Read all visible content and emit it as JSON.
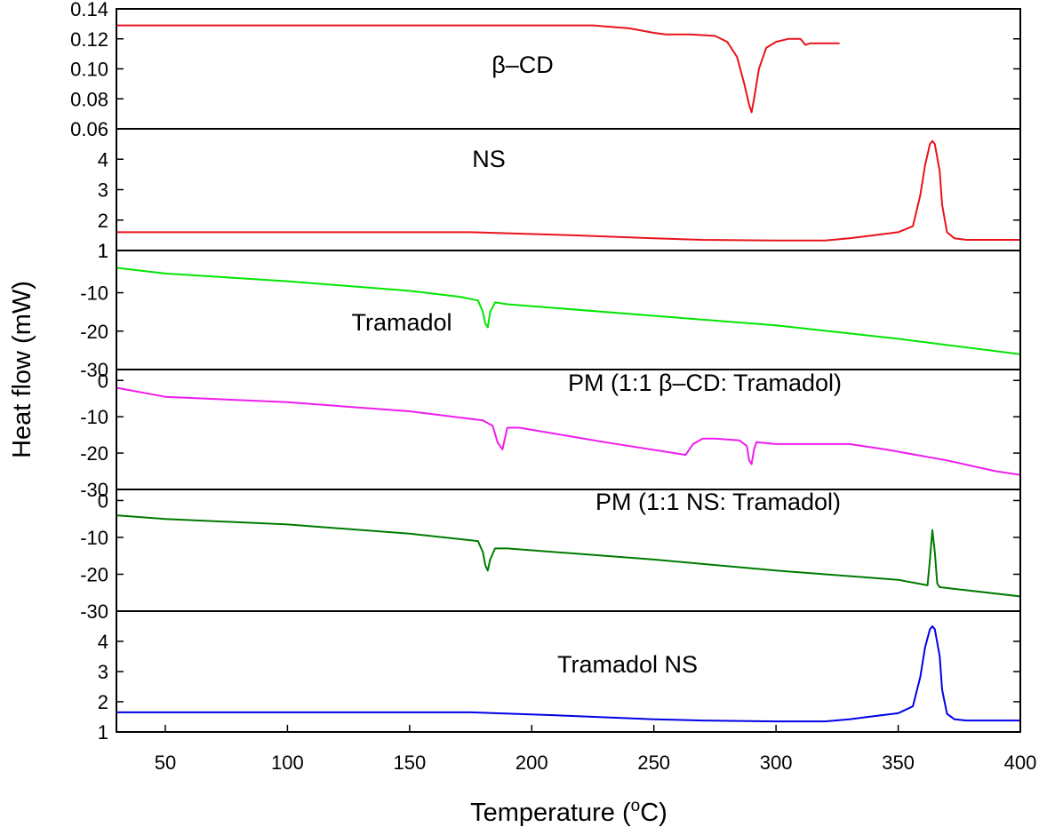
{
  "chart_data": {
    "type": "line",
    "title": "",
    "xlabel": "Temperature (oC)",
    "xlabel_main": "Temperature (",
    "xlabel_sup": "o",
    "xlabel_end": "C)",
    "ylabel": "Heat flow (mW)",
    "xlim": [
      30,
      400
    ],
    "xticks": [
      50,
      100,
      150,
      200,
      250,
      300,
      350,
      400
    ],
    "grid": false,
    "panels": [
      {
        "name": "β-CD",
        "label": "β–CD",
        "color": "#e8131b",
        "ylim": [
          0.06,
          0.14
        ],
        "yticks": [
          0.06,
          0.08,
          0.1,
          0.12,
          0.14
        ],
        "ytick_labels": [
          "0.06",
          "0.08",
          "0.10",
          "0.12",
          "0.14"
        ],
        "series": {
          "x": [
            30,
            100,
            200,
            225,
            240,
            250,
            255,
            265,
            275,
            280,
            284,
            287,
            289,
            290,
            291,
            293,
            296,
            300,
            305,
            308,
            310,
            312,
            314,
            318,
            322,
            326
          ],
          "y": [
            0.129,
            0.129,
            0.129,
            0.129,
            0.127,
            0.124,
            0.123,
            0.123,
            0.122,
            0.118,
            0.108,
            0.09,
            0.076,
            0.071,
            0.08,
            0.1,
            0.114,
            0.118,
            0.12,
            0.12,
            0.12,
            0.116,
            0.117,
            0.117,
            0.117,
            0.117
          ]
        }
      },
      {
        "name": "NS",
        "label": "NS",
        "color": "#e8131b",
        "ylim": [
          1,
          5
        ],
        "yticks": [
          1,
          2,
          3,
          4
        ],
        "ytick_labels": [
          "1",
          "2",
          "3",
          "4"
        ],
        "series": {
          "x": [
            30,
            100,
            175,
            210,
            250,
            270,
            300,
            320,
            330,
            340,
            350,
            356,
            359,
            361,
            363,
            364,
            365,
            367,
            368,
            370,
            373,
            378,
            390,
            400
          ],
          "y": [
            1.6,
            1.6,
            1.6,
            1.52,
            1.4,
            1.35,
            1.33,
            1.33,
            1.4,
            1.5,
            1.6,
            1.8,
            2.8,
            3.8,
            4.5,
            4.6,
            4.5,
            3.6,
            2.5,
            1.6,
            1.4,
            1.35,
            1.35,
            1.35
          ]
        }
      },
      {
        "name": "Tramadol",
        "label": "Tramadol",
        "color": "#00e600",
        "ylim": [
          -30,
          1
        ],
        "yticks": [
          -30,
          -20,
          -10,
          1
        ],
        "ytick_labels": [
          "-30",
          "-20",
          "-10",
          "1"
        ],
        "series": {
          "x": [
            30,
            50,
            100,
            150,
            170,
            178,
            180,
            181,
            182,
            183,
            185,
            190,
            250,
            300,
            350,
            400
          ],
          "y": [
            -3.5,
            -5,
            -7,
            -9.5,
            -11,
            -12,
            -15,
            -18,
            -19,
            -15,
            -12.5,
            -13,
            -16,
            -18.5,
            -22,
            -26
          ]
        }
      },
      {
        "name": "PM (1:1 β-CD: Tramadol)",
        "label": "PM (1:1 β–CD: Tramadol)",
        "color": "#ee1cee",
        "ylim": [
          -30,
          3
        ],
        "yticks": [
          -30,
          -20,
          -10,
          0
        ],
        "ytick_labels": [
          "-30",
          "-20",
          "-10",
          "0"
        ],
        "series": {
          "x": [
            30,
            50,
            100,
            150,
            180,
            184,
            186,
            188,
            190,
            195,
            230,
            263,
            266,
            270,
            275,
            285,
            288,
            289,
            290,
            291,
            292,
            300,
            330,
            345,
            370,
            390,
            400
          ],
          "y": [
            -2,
            -4.5,
            -6,
            -8.5,
            -11,
            -12.5,
            -17,
            -19,
            -13,
            -13,
            -17,
            -20.5,
            -17.5,
            -16,
            -16,
            -16.5,
            -18,
            -22,
            -23,
            -19,
            -17,
            -17.5,
            -17.5,
            -19,
            -22,
            -25,
            -26
          ]
        }
      },
      {
        "name": "PM (1:1 NS: Tramadol)",
        "label": "PM (1:1 NS: Tramadol)",
        "color": "#007a00",
        "ylim": [
          -30,
          3
        ],
        "yticks": [
          -30,
          -20,
          -10,
          0
        ],
        "ytick_labels": [
          "-30",
          "-20",
          "-10",
          "0"
        ],
        "series": {
          "x": [
            30,
            50,
            100,
            150,
            178,
            180,
            181,
            182,
            183,
            185,
            190,
            250,
            300,
            350,
            362,
            363,
            364,
            365,
            366,
            367,
            400
          ],
          "y": [
            -4,
            -5,
            -6.5,
            -9,
            -11,
            -14,
            -17.5,
            -19,
            -16,
            -13,
            -13,
            -16,
            -19,
            -21.5,
            -23,
            -16,
            -8,
            -14,
            -22.5,
            -23.5,
            -26
          ]
        }
      },
      {
        "name": "Tramadol NS",
        "label": "Tramadol NS",
        "color": "#0000e6",
        "ylim": [
          1,
          5
        ],
        "yticks": [
          1,
          2,
          3,
          4
        ],
        "ytick_labels": [
          "1",
          "2",
          "3",
          "4"
        ],
        "series": {
          "x": [
            30,
            100,
            175,
            210,
            250,
            270,
            300,
            320,
            330,
            340,
            350,
            356,
            359,
            361,
            363,
            364,
            365,
            367,
            368,
            370,
            373,
            378,
            390,
            400
          ],
          "y": [
            1.65,
            1.65,
            1.65,
            1.55,
            1.42,
            1.38,
            1.35,
            1.35,
            1.42,
            1.52,
            1.62,
            1.85,
            2.8,
            3.8,
            4.4,
            4.5,
            4.4,
            3.5,
            2.4,
            1.6,
            1.42,
            1.38,
            1.38,
            1.38
          ]
        }
      }
    ]
  }
}
